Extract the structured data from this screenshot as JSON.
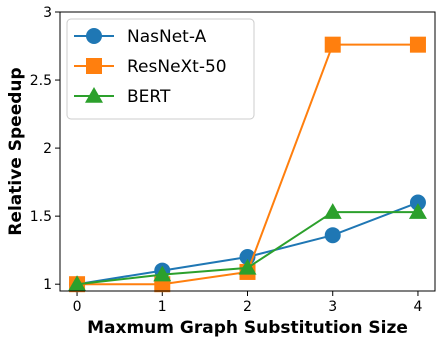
{
  "chart_data": {
    "type": "line",
    "title": "",
    "xlabel": "Maxmum Graph Substitution Size",
    "ylabel": "Relative Speedup",
    "x": [
      0,
      1,
      2,
      3,
      4
    ],
    "xlim": [
      -0.2,
      4.2
    ],
    "ylim": [
      0.95,
      3.0
    ],
    "xticks": [
      0,
      1,
      2,
      3,
      4
    ],
    "yticks": [
      1,
      1.5,
      2,
      2.5,
      3
    ],
    "ytick_labels": [
      "1",
      "1.5",
      "2",
      "2.5",
      "3"
    ],
    "grid": false,
    "legend_position": "top-left",
    "series": [
      {
        "name": "NasNet-A",
        "color": "#1f77b4",
        "marker": "circle",
        "values": [
          1.0,
          1.1,
          1.2,
          1.36,
          1.6
        ]
      },
      {
        "name": "ResNeXt-50",
        "color": "#ff7f0e",
        "marker": "square",
        "values": [
          1.0,
          1.0,
          1.09,
          2.76,
          2.76
        ]
      },
      {
        "name": "BERT",
        "color": "#2ca02c",
        "marker": "triangle",
        "values": [
          1.0,
          1.07,
          1.12,
          1.53,
          1.53
        ]
      }
    ]
  }
}
